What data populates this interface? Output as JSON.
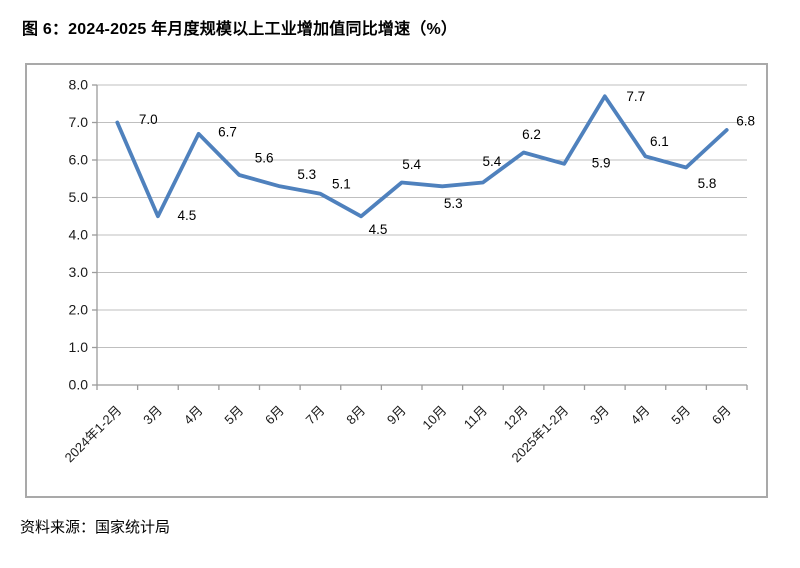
{
  "page": {
    "title": "图 6：2024-2025 年月度规模以上工业增加值同比增速（%）",
    "source": "资料来源：国家统计局"
  },
  "chart_data": {
    "type": "line",
    "title": "图 6：2024-2025 年月度规模以上工业增加值同比增速（%）",
    "categories": [
      "2024年1-2月",
      "3月",
      "4月",
      "5月",
      "6月",
      "7月",
      "8月",
      "9月",
      "10月",
      "11月",
      "12月",
      "2025年1-2月",
      "3月",
      "4月",
      "5月",
      "6月"
    ],
    "values": [
      7.0,
      4.5,
      6.7,
      5.6,
      5.3,
      5.1,
      4.5,
      5.4,
      5.3,
      5.4,
      6.2,
      5.9,
      7.7,
      6.1,
      5.8,
      6.8
    ],
    "xlabel": "",
    "ylabel": "",
    "ylim": [
      0,
      8
    ],
    "ytick_step": 1,
    "ytick_labels": [
      "0.0",
      "1.0",
      "2.0",
      "3.0",
      "4.0",
      "5.0",
      "6.0",
      "7.0",
      "8.0"
    ],
    "grid": true,
    "legend_position": "none",
    "data_labels": true,
    "label_decimals": 1
  },
  "colors": {
    "line": "#4F81BD",
    "gridline": "#bfbfbf",
    "axis": "#9b9b9b",
    "box_border": "#a9a9a9",
    "label_text": "#1a1a1a"
  }
}
